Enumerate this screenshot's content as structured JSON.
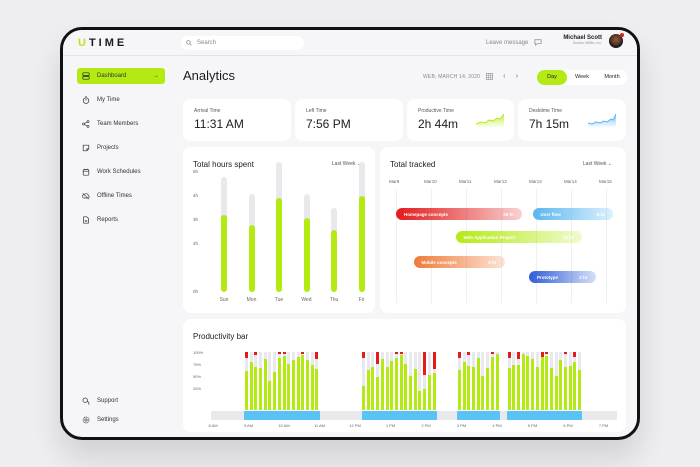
{
  "app": {
    "logo_first": "U",
    "logo_rest": "TIME"
  },
  "topbar": {
    "search_placeholder": "Search",
    "leave_message": "Leave message",
    "user_name": "Michael Scott",
    "user_company": "Dunder Mifflin, Inc."
  },
  "sidebar": {
    "items": [
      {
        "label": "Dashboard",
        "icon": "dashboard-icon",
        "active": true
      },
      {
        "label": "My Time",
        "icon": "stopwatch-icon"
      },
      {
        "label": "Team Members",
        "icon": "share-icon"
      },
      {
        "label": "Projects",
        "icon": "note-icon"
      },
      {
        "label": "Work Schedules",
        "icon": "calendar-icon"
      },
      {
        "label": "Offline Times",
        "icon": "cloud-off-icon"
      },
      {
        "label": "Reports",
        "icon": "report-icon"
      }
    ],
    "bottom": [
      {
        "label": "Support",
        "icon": "support-icon"
      },
      {
        "label": "Settings",
        "icon": "settings-icon"
      }
    ],
    "active_arrow": "→"
  },
  "header": {
    "title": "Analytics",
    "date": "WEB, MARCH 14, 2020",
    "prev": "‹",
    "next": "›",
    "views": [
      "Day",
      "Week",
      "Month"
    ],
    "active_view": "Day"
  },
  "stats": [
    {
      "label": "Arrival Time",
      "value": "11:31 AM"
    },
    {
      "label": "Left Time",
      "value": "7:56 PM"
    },
    {
      "label": "Productive Time",
      "value": "2h 44m",
      "spark_color": "#b4ea14"
    },
    {
      "label": "Desktime Time",
      "value": "7h 15m",
      "spark_color": "#5ab6f0"
    }
  ],
  "hours_card": {
    "title": "Total hours spent",
    "filter": "Last Week ⌄"
  },
  "tracked_card": {
    "title": "Total tracked",
    "filter": "Last Week ⌄"
  },
  "productivity_card": {
    "title": "Productivity bar"
  },
  "colors": {
    "accent": "#b4ea14",
    "blue": "#5ac3f5",
    "red": "#e21b1b",
    "track": "#e9e8ec"
  },
  "chart_data": [
    {
      "type": "bar",
      "title": "Total hours spent",
      "categories": [
        "Sun",
        "Mon",
        "Tue",
        "Wed",
        "Thu",
        "Fri"
      ],
      "series": [
        {
          "name": "Tracked",
          "values": [
            3.2,
            2.8,
            3.9,
            3.1,
            2.6,
            4.0
          ]
        },
        {
          "name": "Total",
          "values": [
            4.8,
            4.1,
            5.4,
            4.1,
            3.5,
            5.4
          ]
        }
      ],
      "yticks": [
        "0h",
        "2h",
        "3h",
        "4h",
        "5h"
      ],
      "ylim": [
        0,
        5.5
      ],
      "filter": "Last Week"
    },
    {
      "type": "gantt",
      "title": "Total tracked",
      "categories": [
        "Mar9",
        "Mar10",
        "Mar11",
        "Mar12",
        "Mar13",
        "Mar14",
        "Mar15"
      ],
      "tasks": [
        {
          "name": "Homepage concepts",
          "hours": "26 hr",
          "start": 0,
          "end": 3.6,
          "color": "#e21b1b"
        },
        {
          "name": "User flow",
          "hours": "8 hr",
          "start": 3.9,
          "end": 6.2,
          "color": "#5ab6f0"
        },
        {
          "name": "Web Application Project",
          "hours": "15 hr",
          "start": 1.7,
          "end": 5.3,
          "color": "#b4ea14"
        },
        {
          "name": "Mobile concepts",
          "hours": "5 hr",
          "start": 0.5,
          "end": 3.1,
          "color": "#f07a3a"
        },
        {
          "name": "Prototype",
          "hours": "2 hr",
          "start": 3.8,
          "end": 5.7,
          "color": "#2f5ed8"
        }
      ]
    },
    {
      "type": "bar",
      "title": "Productivity bar",
      "yticks": [
        "100%",
        "75%",
        "50%",
        "25%"
      ],
      "xticks": [
        "8 AM",
        "9 AM",
        "10 AM",
        "11 AM",
        "12 PM",
        "1 PM",
        "2 PM",
        "3 PM",
        "4 PM",
        "5 PM",
        "6 PM",
        "7 PM"
      ],
      "groups": [
        {
          "start_hour": 8.8,
          "values": [
            68,
            83,
            75,
            73,
            88,
            50,
            66,
            90,
            93,
            79,
            87,
            91,
            95,
            86,
            77,
            71
          ],
          "red": [
            10,
            0,
            5,
            0,
            0,
            0,
            0,
            4,
            4,
            0,
            0,
            0,
            4,
            0,
            0,
            12
          ]
        },
        {
          "start_hour": 12.1,
          "values": [
            42,
            69,
            74,
            57,
            88,
            74,
            85,
            90,
            94,
            79,
            59,
            70,
            33,
            37,
            60,
            64
          ],
          "red": [
            10,
            0,
            0,
            20,
            0,
            0,
            0,
            4,
            4,
            0,
            0,
            0,
            0,
            40,
            0,
            30
          ]
        },
        {
          "start_hour": 14.8,
          "values": [
            69,
            82,
            76,
            75,
            90,
            58,
            73,
            92,
            97
          ],
          "red": [
            10,
            0,
            5,
            0,
            0,
            0,
            0,
            4,
            0
          ]
        },
        {
          "start_hour": 16.2,
          "values": [
            73,
            77,
            78,
            96,
            93,
            88,
            75,
            96,
            93,
            73,
            59,
            86,
            75,
            76,
            83,
            69
          ],
          "red": [
            10,
            0,
            12,
            0,
            0,
            0,
            0,
            9,
            4,
            0,
            0,
            0,
            4,
            0,
            9,
            0
          ]
        }
      ]
    }
  ]
}
